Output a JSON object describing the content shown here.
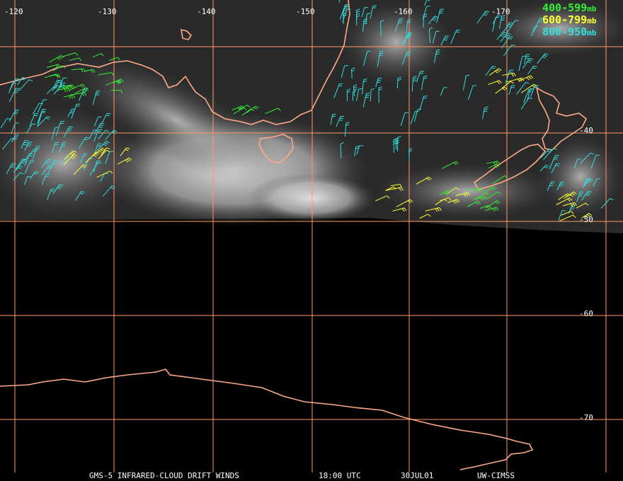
{
  "footer": {
    "satellite": "GMS-5 INFRARED-CLOUD DRIFT WINDS",
    "time": "18:00 UTC",
    "date": "30JUL01",
    "source": "UW-CIMSS"
  },
  "legend": [
    {
      "label": "400-599",
      "unit": "mb",
      "color": "#33ee33"
    },
    {
      "label": "600-799",
      "unit": "mb",
      "color": "#ffff33"
    },
    {
      "label": "800-950",
      "unit": "mb",
      "color": "#33dddd"
    }
  ],
  "longitude_labels": [
    "-120",
    "-130",
    "-140",
    "-150",
    "-160",
    "-170"
  ],
  "latitude_labels": [
    "-40",
    "-50",
    "-60",
    "-70"
  ],
  "colors": {
    "grid": "#ff9966",
    "coast": "#ffaa88",
    "background": "#000000"
  },
  "icons": {
    "wind_barb": "wind-barb-icon"
  }
}
